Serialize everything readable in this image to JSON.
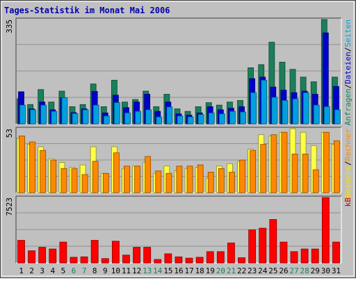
{
  "chart_data": [
    {
      "type": "bar",
      "title": "Tages-Statistik im Monat Mai 2006",
      "axis_max_label": "335",
      "ylim": [
        0,
        335
      ],
      "categories": [
        "1",
        "2",
        "3",
        "4",
        "5",
        "6",
        "7",
        "8",
        "9",
        "10",
        "11",
        "12",
        "13",
        "14",
        "15",
        "16",
        "17",
        "18",
        "19",
        "20",
        "21",
        "22",
        "23",
        "24",
        "25",
        "26",
        "27",
        "28",
        "29",
        "30",
        "31"
      ],
      "weekend_days": [
        "6",
        "7",
        "13",
        "14",
        "20",
        "21",
        "27",
        "28"
      ],
      "legend_right": [
        {
          "text": "Anfragen",
          "color": "#1a7f5a"
        },
        {
          "text": "/",
          "color": "#000000"
        },
        {
          "text": "Dateien",
          "color": "#0000cc"
        },
        {
          "text": "/",
          "color": "#000000"
        },
        {
          "text": "Seiten",
          "color": "#00a0e0"
        }
      ],
      "series": [
        {
          "name": "Anfragen",
          "color": "#1a7f5a",
          "values": [
            80,
            62,
            110,
            70,
            105,
            55,
            62,
            128,
            55,
            140,
            70,
            78,
            105,
            55,
            95,
            48,
            40,
            55,
            68,
            60,
            70,
            75,
            180,
            190,
            262,
            198,
            175,
            150,
            135,
            335,
            150
          ]
        },
        {
          "name": "Dateien",
          "color": "#0000cc",
          "values": [
            103,
            48,
            70,
            45,
            84,
            36,
            48,
            104,
            35,
            92,
            52,
            70,
            95,
            40,
            70,
            32,
            28,
            35,
            55,
            45,
            50,
            55,
            145,
            150,
            118,
            108,
            100,
            105,
            95,
            292,
            120
          ]
        },
        {
          "name": "Seiten",
          "color": "#00a0e0",
          "values": [
            60,
            45,
            60,
            40,
            84,
            33,
            45,
            60,
            25,
            68,
            35,
            40,
            45,
            22,
            54,
            25,
            22,
            30,
            35,
            32,
            40,
            38,
            100,
            140,
            85,
            75,
            80,
            100,
            60,
            55,
            45
          ]
        }
      ]
    },
    {
      "type": "bar",
      "axis_max_label": "53",
      "ylim": [
        0,
        53
      ],
      "categories": [
        "1",
        "2",
        "3",
        "4",
        "5",
        "6",
        "7",
        "8",
        "9",
        "10",
        "11",
        "12",
        "13",
        "14",
        "15",
        "16",
        "17",
        "18",
        "19",
        "20",
        "21",
        "22",
        "23",
        "24",
        "25",
        "26",
        "27",
        "28",
        "29",
        "30",
        "31"
      ],
      "legend_right": [
        {
          "text": "Besuche",
          "color": "#ffdd00"
        },
        {
          "text": "/",
          "color": "#000000"
        },
        {
          "text": "Rechner",
          "color": "#ff8800"
        }
      ],
      "series": [
        {
          "name": "Besuche",
          "color": "#ffff44",
          "values": [
            45,
            40,
            38,
            28,
            25,
            21,
            23,
            38,
            16,
            38,
            20,
            22,
            25,
            16,
            22,
            18,
            20,
            21,
            12,
            22,
            24,
            26,
            36,
            48,
            47,
            50,
            53,
            50,
            39,
            50,
            40
          ]
        },
        {
          "name": "Rechner",
          "color": "#ff8800",
          "values": [
            47,
            42,
            35,
            27,
            20,
            20,
            15,
            26,
            16,
            33,
            22,
            22,
            30,
            18,
            16,
            22,
            22,
            23,
            17,
            20,
            17,
            27,
            35,
            40,
            48,
            50,
            32,
            32,
            19,
            50,
            43
          ]
        }
      ]
    },
    {
      "type": "bar",
      "axis_max_label": "7523",
      "ylim": [
        0,
        7523
      ],
      "categories": [
        "1",
        "2",
        "3",
        "4",
        "5",
        "6",
        "7",
        "8",
        "9",
        "10",
        "11",
        "12",
        "13",
        "14",
        "15",
        "16",
        "17",
        "18",
        "19",
        "20",
        "21",
        "22",
        "23",
        "24",
        "25",
        "26",
        "27",
        "28",
        "29",
        "30",
        "31"
      ],
      "legend_right": [
        {
          "text": "kB",
          "color": "#cc0000"
        }
      ],
      "series": [
        {
          "name": "kB",
          "color": "#ff0000",
          "values": [
            2600,
            1400,
            1800,
            1600,
            2400,
            650,
            700,
            2600,
            500,
            2500,
            900,
            1800,
            1800,
            400,
            1050,
            700,
            550,
            650,
            1300,
            1300,
            2300,
            600,
            3800,
            4000,
            5000,
            2400,
            1300,
            1600,
            1600,
            7523,
            2400
          ]
        }
      ]
    }
  ]
}
